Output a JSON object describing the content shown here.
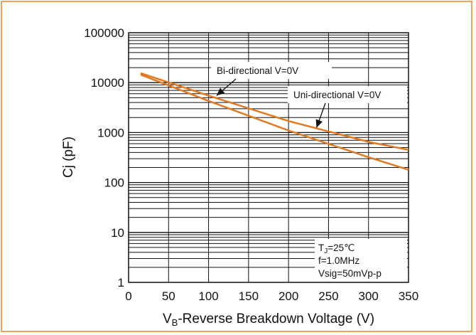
{
  "chart_data": {
    "type": "line",
    "xlabel_parts": {
      "pre": "V",
      "sub": "B",
      "post": "-Reverse Breakdown Voltage (V)"
    },
    "ylabel": "Cj (pF)",
    "x_ticks": [
      "0",
      "50",
      "100",
      "150",
      "200",
      "250",
      "300",
      "350"
    ],
    "y_ticks": [
      "1",
      "10",
      "100",
      "1000",
      "10000",
      "100000"
    ],
    "xlim": [
      0,
      350
    ],
    "ylim": [
      1,
      100000
    ],
    "y_scale": "log",
    "grid": true,
    "series": [
      {
        "name": "Bi-directional V=0V",
        "color": "#e07a22",
        "x": [
          15,
          100,
          200,
          300,
          350
        ],
        "y": [
          15500,
          5500,
          1700,
          650,
          450
        ]
      },
      {
        "name": "Uni-directional V=0V",
        "color": "#e07a22",
        "x": [
          15,
          100,
          200,
          300,
          350
        ],
        "y": [
          14500,
          4300,
          1100,
          320,
          180
        ]
      }
    ],
    "annotations": [
      {
        "text": "Bi-directional V=0V",
        "arrow_to": [
          110,
          5500
        ]
      },
      {
        "text": "Uni-directional V=0V",
        "arrow_to": [
          235,
          1250
        ]
      }
    ],
    "conditions": {
      "tj": {
        "pre": "T",
        "sub": "J",
        "post": "=25℃"
      },
      "freq": "f=1.0MHz",
      "vsig": "Vsig=50mVp-p"
    }
  }
}
